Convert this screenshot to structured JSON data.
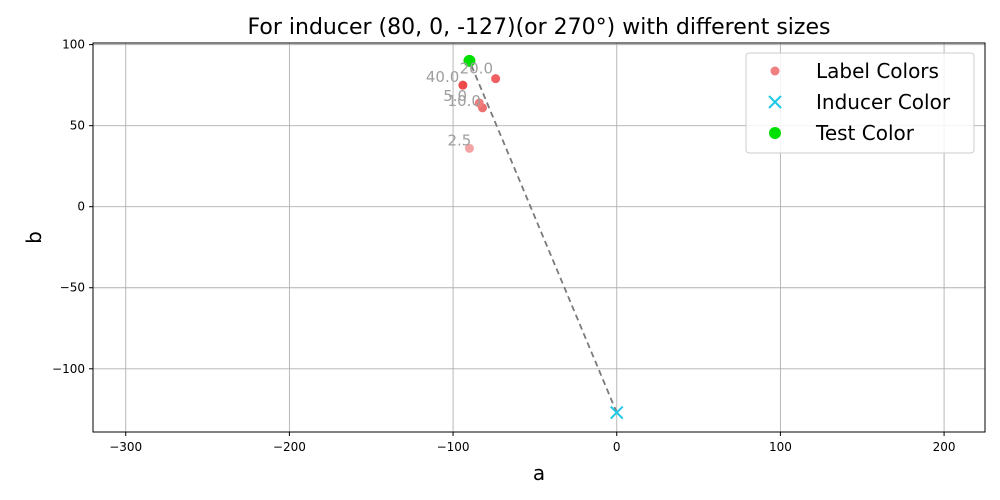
{
  "chart_data": {
    "type": "scatter",
    "title": "For inducer (80, 0, -127)(or 270°) with different sizes",
    "xlabel": "a",
    "ylabel": "b",
    "xlim": [
      -320,
      225
    ],
    "ylim": [
      -139,
      101
    ],
    "xticks": [
      -300,
      -200,
      -100,
      0,
      100,
      200
    ],
    "yticks": [
      -100,
      -50,
      0,
      50,
      100
    ],
    "grid": true,
    "legend_position": "top-right",
    "series": [
      {
        "name": "Label Colors",
        "marker": "circle",
        "color": "#f08080",
        "points": [
          {
            "x": -90,
            "y": 36,
            "label": "2.5",
            "color": "#f4a3a3"
          },
          {
            "x": -82,
            "y": 61,
            "label": "10.0",
            "color": "#ee6f6f"
          },
          {
            "x": -84,
            "y": 64,
            "label": "5.0",
            "color": "#f07c7c"
          },
          {
            "x": -74,
            "y": 79,
            "label": "20.0",
            "color": "#f06060"
          },
          {
            "x": -94,
            "y": 75,
            "label": "40.0",
            "color": "#ee4a4a"
          }
        ]
      },
      {
        "name": "Inducer Color",
        "marker": "x",
        "color": "#1ec8e6",
        "points": [
          {
            "x": 0,
            "y": -127
          }
        ]
      },
      {
        "name": "Test Color",
        "marker": "circle",
        "color": "#00e000",
        "points": [
          {
            "x": -90,
            "y": 90
          }
        ]
      }
    ],
    "reference_line": {
      "from": [
        0,
        -127
      ],
      "to": [
        -90,
        90
      ],
      "style": "dashed",
      "color": "#7a7a7a"
    }
  }
}
